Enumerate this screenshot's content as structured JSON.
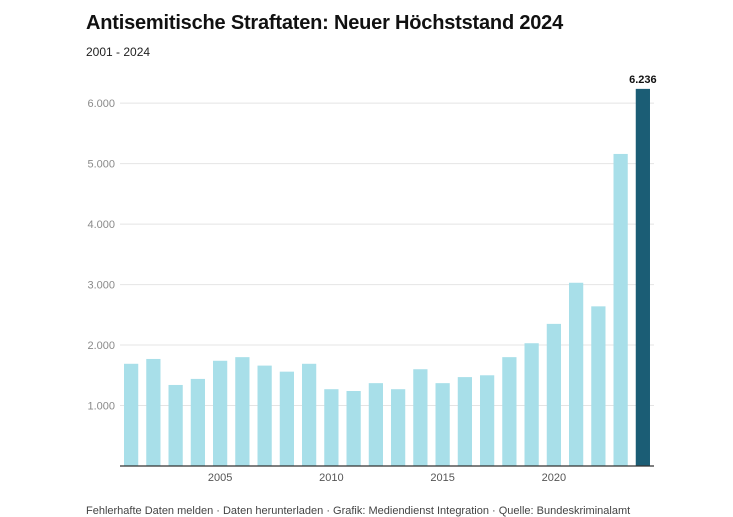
{
  "chart_data": {
    "type": "bar",
    "title": "Antisemitische Straftaten: Neuer Höchststand 2024",
    "subtitle": "2001 - 2024",
    "xlabel": "",
    "ylabel": "",
    "ylim": [
      0,
      6300
    ],
    "yticks": [
      1000,
      2000,
      3000,
      4000,
      5000,
      6000
    ],
    "ytick_labels": [
      "1.000",
      "2.000",
      "3.000",
      "4.000",
      "5.000",
      "6.000"
    ],
    "xtick_labels": [
      {
        "year": 2005,
        "label": "2005"
      },
      {
        "year": 2010,
        "label": "2010"
      },
      {
        "year": 2015,
        "label": "2015"
      },
      {
        "year": 2020,
        "label": "2020"
      }
    ],
    "grid": true,
    "categories": [
      2001,
      2002,
      2003,
      2004,
      2005,
      2006,
      2007,
      2008,
      2009,
      2010,
      2011,
      2012,
      2013,
      2014,
      2015,
      2016,
      2017,
      2018,
      2019,
      2020,
      2021,
      2022,
      2023,
      2024
    ],
    "values": [
      1690,
      1770,
      1340,
      1440,
      1740,
      1800,
      1660,
      1560,
      1690,
      1270,
      1240,
      1370,
      1270,
      1600,
      1370,
      1470,
      1500,
      1800,
      2030,
      2350,
      3030,
      2640,
      5160,
      6236
    ],
    "highlight_index": 23,
    "data_labels": [
      {
        "index": 23,
        "text": "6.236"
      }
    ],
    "colors": {
      "bar": "#a8dfe9",
      "highlight": "#1b5d75",
      "grid": "#e4e4e4",
      "axis": "#333333"
    }
  },
  "footer_text": "Fehlerhafte Daten melden · Daten herunterladen · Grafik: Mediendienst Integration · Quelle: Bundeskriminalamt"
}
